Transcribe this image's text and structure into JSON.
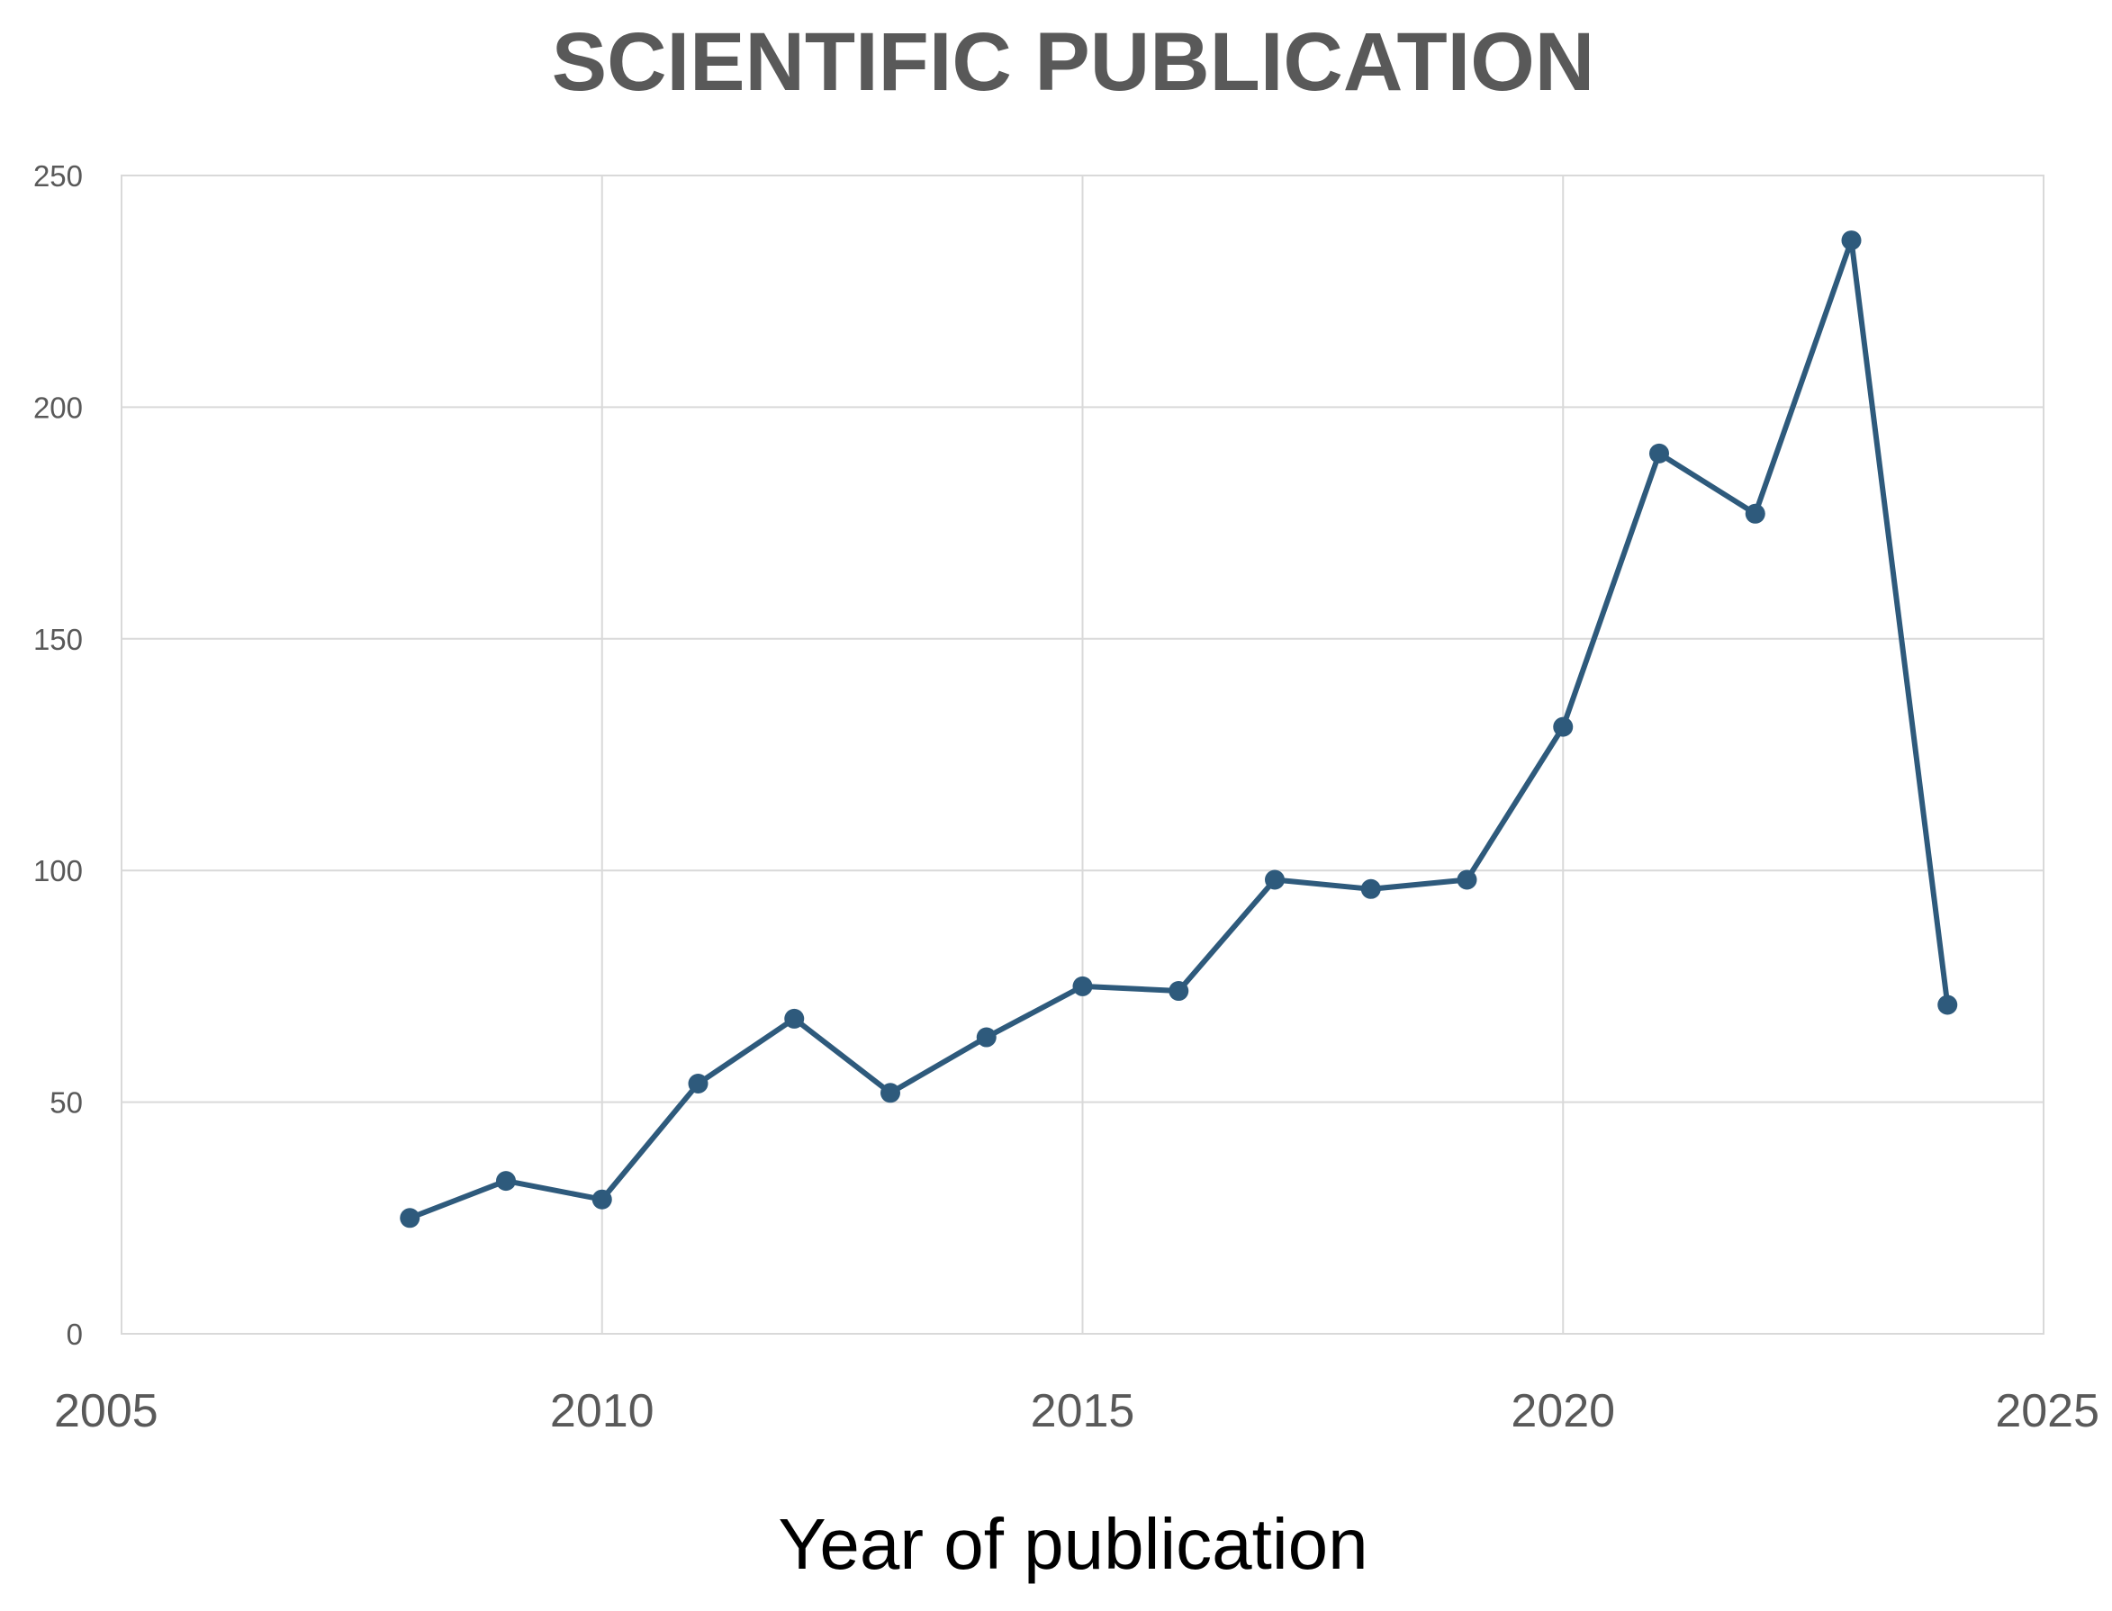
{
  "chart_data": {
    "type": "line",
    "title": "SCIENTIFIC PUBLICATION",
    "xlabel": "Year of publication",
    "ylabel": "",
    "xlim": [
      2005,
      2025
    ],
    "ylim": [
      0,
      250
    ],
    "x_ticks": [
      2005,
      2010,
      2015,
      2020,
      2025
    ],
    "y_ticks": [
      0,
      50,
      100,
      150,
      200,
      250
    ],
    "grid": true,
    "legend": "none",
    "series": [
      {
        "color": "#2e5a7c",
        "x": [
          2008,
          2009,
          2010,
          2011,
          2012,
          2013,
          2014,
          2015,
          2016,
          2017,
          2018,
          2019,
          2020,
          2021,
          2022,
          2023,
          2024
        ],
        "y": [
          25,
          33,
          29,
          54,
          68,
          52,
          64,
          75,
          74,
          98,
          96,
          98,
          131,
          190,
          177,
          236,
          71
        ]
      }
    ]
  }
}
